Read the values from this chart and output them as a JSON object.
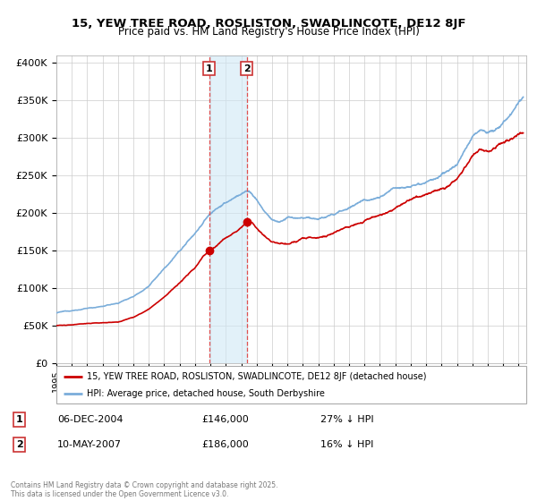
{
  "title1": "15, YEW TREE ROAD, ROSLISTON, SWADLINCOTE, DE12 8JF",
  "title2": "Price paid vs. HM Land Registry's House Price Index (HPI)",
  "legend_label_red": "15, YEW TREE ROAD, ROSLISTON, SWADLINCOTE, DE12 8JF (detached house)",
  "legend_label_blue": "HPI: Average price, detached house, South Derbyshire",
  "annotation1_date": "06-DEC-2004",
  "annotation1_price": "£146,000",
  "annotation1_hpi": "27% ↓ HPI",
  "annotation2_date": "10-MAY-2007",
  "annotation2_price": "£186,000",
  "annotation2_hpi": "16% ↓ HPI",
  "copyright": "Contains HM Land Registry data © Crown copyright and database right 2025.\nThis data is licensed under the Open Government Licence v3.0.",
  "purchase1_year": 2004.92,
  "purchase1_price": 146000,
  "purchase2_year": 2007.36,
  "purchase2_price": 186000,
  "red_color": "#cc0000",
  "blue_color": "#7aadda",
  "shade_color": "#d0e8f5",
  "vline_color": "#e05050",
  "dot_color": "#cc0000",
  "background_color": "#ffffff",
  "grid_color": "#cccccc",
  "box_edge_color": "#cc3333"
}
